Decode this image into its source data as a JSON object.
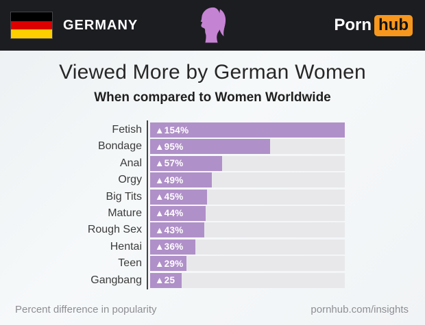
{
  "header": {
    "country": "GERMANY",
    "flag": {
      "colors": [
        "#000000",
        "#dd0000",
        "#ffce00"
      ]
    },
    "logo": {
      "part1": "Porn",
      "part2": "hub",
      "accent_color": "#f7971d"
    },
    "silhouette_color": "#c583d3"
  },
  "title": "Viewed More by German Women",
  "subtitle": "When compared to Women Worldwide",
  "footer": {
    "left_caption": "Percent difference in popularity",
    "right_source": "pornhub.com/insights"
  },
  "chart_data": {
    "type": "bar",
    "orientation": "horizontal",
    "title": "Viewed More by German Women",
    "subtitle": "When compared to Women Worldwide",
    "xlabel": "Percent difference in popularity",
    "categories": [
      "Fetish",
      "Bondage",
      "Anal",
      "Orgy",
      "Big Tits",
      "Mature",
      "Rough Sex",
      "Hentai",
      "Teen",
      "Gangbang"
    ],
    "values": [
      154,
      95,
      57,
      49,
      45,
      44,
      43,
      36,
      29,
      25
    ],
    "bar_labels": [
      "▲154%",
      "▲95%",
      "▲57%",
      "▲49%",
      "▲45%",
      "▲44%",
      "▲43%",
      "▲36%",
      "▲29%",
      "▲25"
    ],
    "max_value": 154,
    "bar_color": "#b090c8",
    "track_color": "#e8e8ea",
    "grid": false,
    "legend": false
  }
}
